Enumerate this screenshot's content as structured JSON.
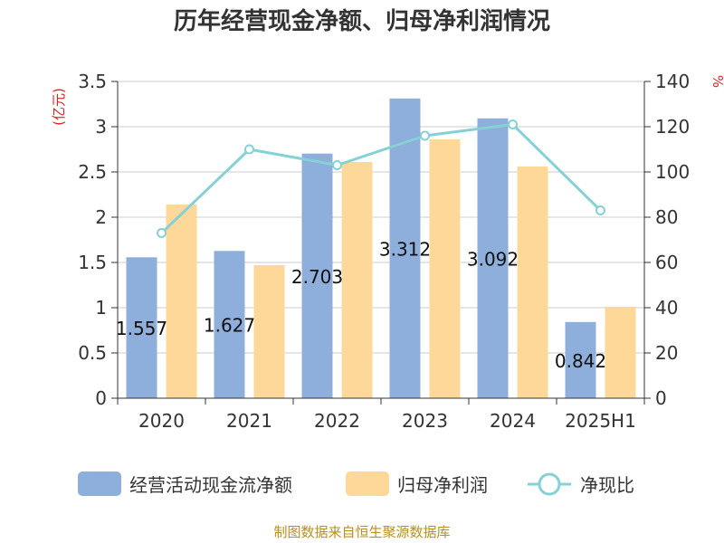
{
  "colors": {
    "bar_cashflow": "#8eafdc",
    "bar_profit": "#fed898",
    "line_ratio": "#86d1d6",
    "unit_label": "#dd2222",
    "axis": "#333333",
    "grid": "#cccccc",
    "source": "#b8901a"
  },
  "chart_data": {
    "type": "bar",
    "title": "历年经营现金净额、归母净利润情况",
    "categories": [
      "2020",
      "2021",
      "2022",
      "2023",
      "2024",
      "2025H1"
    ],
    "series": [
      {
        "name": "经营活动现金流净额",
        "type": "bar",
        "axis": "left",
        "values": [
          1.557,
          1.627,
          2.703,
          3.312,
          3.092,
          0.842
        ]
      },
      {
        "name": "归母净利润",
        "type": "bar",
        "axis": "left",
        "values": [
          2.14,
          1.47,
          2.61,
          2.86,
          2.56,
          1.01
        ]
      },
      {
        "name": "净现比",
        "type": "line",
        "axis": "right",
        "values": [
          73,
          110,
          103,
          116,
          121,
          83
        ]
      }
    ],
    "data_labels": [
      "1.557",
      "1.627",
      "2.703",
      "3.312",
      "3.092",
      "0.842"
    ],
    "y_left": {
      "unit": "(亿元)",
      "ylim": [
        0,
        3.5
      ],
      "ticks": [
        "0",
        "0.5",
        "1",
        "1.5",
        "2",
        "2.5",
        "3",
        "3.5"
      ]
    },
    "y_right": {
      "unit": "%",
      "ylim": [
        0,
        140
      ],
      "ticks": [
        "0",
        "20",
        "40",
        "60",
        "80",
        "100",
        "120",
        "140"
      ]
    },
    "grid": true,
    "legend_position": "bottom"
  },
  "footer": {
    "source": "制图数据来自恒生聚源数据库"
  }
}
